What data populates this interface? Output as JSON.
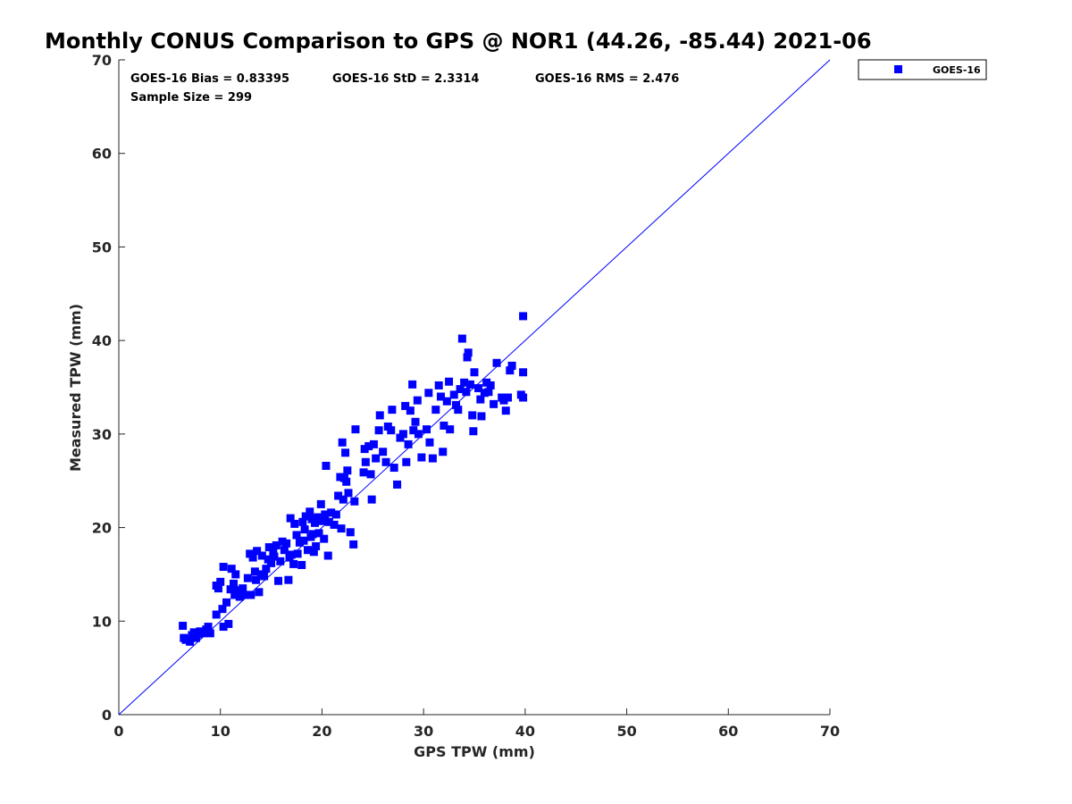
{
  "chart_data": {
    "type": "scatter",
    "title": "Monthly CONUS Comparison to GPS @ NOR1 (44.26, -85.44) 2021-06",
    "xlabel": "GPS TPW (mm)",
    "ylabel": "Measured TPW (mm)",
    "xlim": [
      0,
      70
    ],
    "ylim": [
      0,
      70
    ],
    "xticks": [
      "0",
      "10",
      "20",
      "30",
      "40",
      "50",
      "60",
      "70"
    ],
    "yticks": [
      "0",
      "10",
      "20",
      "30",
      "40",
      "50",
      "60",
      "70"
    ],
    "grid": false,
    "legend_position": "top-right (outside)",
    "reference_line": {
      "type": "one-to-one",
      "from": [
        0,
        0
      ],
      "to": [
        70,
        70
      ],
      "color": "#0000ff"
    },
    "stats": {
      "bias": "GOES-16 Bias = 0.83395",
      "std": "GOES-16 StD = 2.3314",
      "rms": "GOES-16 RMS = 2.476",
      "sample_size": "Sample Size = 299"
    },
    "series": [
      {
        "name": "GOES-16",
        "color": "#0000ff",
        "marker": "square",
        "points": [
          [
            6.3,
            9.5
          ],
          [
            6.4,
            8.2
          ],
          [
            6.6,
            8.0
          ],
          [
            7.0,
            7.8
          ],
          [
            7.2,
            8.5
          ],
          [
            7.4,
            8.8
          ],
          [
            7.6,
            8.2
          ],
          [
            7.8,
            8.6
          ],
          [
            8.0,
            8.9
          ],
          [
            8.3,
            8.7
          ],
          [
            8.6,
            9.1
          ],
          [
            8.8,
            9.4
          ],
          [
            9.0,
            8.7
          ],
          [
            9.6,
            10.7
          ],
          [
            9.6,
            13.8
          ],
          [
            9.8,
            13.5
          ],
          [
            10.0,
            14.2
          ],
          [
            10.2,
            11.3
          ],
          [
            10.3,
            9.4
          ],
          [
            10.3,
            15.8
          ],
          [
            10.6,
            12.0
          ],
          [
            10.8,
            9.7
          ],
          [
            11.0,
            13.4
          ],
          [
            11.1,
            15.6
          ],
          [
            11.3,
            14.0
          ],
          [
            11.4,
            12.8
          ],
          [
            11.5,
            15.0
          ],
          [
            11.7,
            13.3
          ],
          [
            11.9,
            12.6
          ],
          [
            12.2,
            13.5
          ],
          [
            12.4,
            12.8
          ],
          [
            12.7,
            14.6
          ],
          [
            12.9,
            17.2
          ],
          [
            13.0,
            12.8
          ],
          [
            13.2,
            16.8
          ],
          [
            13.4,
            15.3
          ],
          [
            13.5,
            14.4
          ],
          [
            13.6,
            17.5
          ],
          [
            13.8,
            13.1
          ],
          [
            14.0,
            15.0
          ],
          [
            14.1,
            17.0
          ],
          [
            14.3,
            14.8
          ],
          [
            14.5,
            15.6
          ],
          [
            14.7,
            16.6
          ],
          [
            14.8,
            17.9
          ],
          [
            15.0,
            16.2
          ],
          [
            15.2,
            17.3
          ],
          [
            15.3,
            16.9
          ],
          [
            15.5,
            18.1
          ],
          [
            15.7,
            14.3
          ],
          [
            15.9,
            16.4
          ],
          [
            16.1,
            18.5
          ],
          [
            16.3,
            17.6
          ],
          [
            16.5,
            18.3
          ],
          [
            16.7,
            14.4
          ],
          [
            16.8,
            16.8
          ],
          [
            16.9,
            21.0
          ],
          [
            17.0,
            17.1
          ],
          [
            17.2,
            16.1
          ],
          [
            17.3,
            20.4
          ],
          [
            17.5,
            19.2
          ],
          [
            17.6,
            17.2
          ],
          [
            17.8,
            18.4
          ],
          [
            18.0,
            16.0
          ],
          [
            18.1,
            20.6
          ],
          [
            18.2,
            18.6
          ],
          [
            18.3,
            19.8
          ],
          [
            18.4,
            21.2
          ],
          [
            18.6,
            17.6
          ],
          [
            18.8,
            21.7
          ],
          [
            18.9,
            19.0
          ],
          [
            19.0,
            20.9
          ],
          [
            19.1,
            19.3
          ],
          [
            19.2,
            17.4
          ],
          [
            19.3,
            20.5
          ],
          [
            19.4,
            18.0
          ],
          [
            19.6,
            21.1
          ],
          [
            19.7,
            19.4
          ],
          [
            19.9,
            22.5
          ],
          [
            20.0,
            20.7
          ],
          [
            20.2,
            18.8
          ],
          [
            20.3,
            21.4
          ],
          [
            20.4,
            26.6
          ],
          [
            20.6,
            17.0
          ],
          [
            20.7,
            20.6
          ],
          [
            20.9,
            21.6
          ],
          [
            21.2,
            20.3
          ],
          [
            21.4,
            21.4
          ],
          [
            21.6,
            23.4
          ],
          [
            21.8,
            25.4
          ],
          [
            21.9,
            19.9
          ],
          [
            22.0,
            29.1
          ],
          [
            22.1,
            23.0
          ],
          [
            22.2,
            25.3
          ],
          [
            22.3,
            28.0
          ],
          [
            22.4,
            24.9
          ],
          [
            22.5,
            26.1
          ],
          [
            22.6,
            23.7
          ],
          [
            22.8,
            19.5
          ],
          [
            23.1,
            18.2
          ],
          [
            23.2,
            22.8
          ],
          [
            23.3,
            30.5
          ],
          [
            24.1,
            25.9
          ],
          [
            24.2,
            28.4
          ],
          [
            24.3,
            27.0
          ],
          [
            24.6,
            28.7
          ],
          [
            24.8,
            25.7
          ],
          [
            24.9,
            23.0
          ],
          [
            25.1,
            28.9
          ],
          [
            25.3,
            27.4
          ],
          [
            25.6,
            30.4
          ],
          [
            25.7,
            32.0
          ],
          [
            26.0,
            28.1
          ],
          [
            26.3,
            27.0
          ],
          [
            26.5,
            30.8
          ],
          [
            26.8,
            30.4
          ],
          [
            26.9,
            32.6
          ],
          [
            27.1,
            26.4
          ],
          [
            27.4,
            24.6
          ],
          [
            27.7,
            29.6
          ],
          [
            28.0,
            30.0
          ],
          [
            28.2,
            33.0
          ],
          [
            28.3,
            27.0
          ],
          [
            28.5,
            28.9
          ],
          [
            28.7,
            32.5
          ],
          [
            28.9,
            35.3
          ],
          [
            29.0,
            30.4
          ],
          [
            29.2,
            31.3
          ],
          [
            29.4,
            33.6
          ],
          [
            29.5,
            30.0
          ],
          [
            29.8,
            27.5
          ],
          [
            30.3,
            30.5
          ],
          [
            30.5,
            34.4
          ],
          [
            30.6,
            29.1
          ],
          [
            30.9,
            27.4
          ],
          [
            31.2,
            32.6
          ],
          [
            31.5,
            35.2
          ],
          [
            31.7,
            34.0
          ],
          [
            31.9,
            28.1
          ],
          [
            32.0,
            30.9
          ],
          [
            32.3,
            33.5
          ],
          [
            32.5,
            35.6
          ],
          [
            32.6,
            30.5
          ],
          [
            33.0,
            34.2
          ],
          [
            33.2,
            33.1
          ],
          [
            33.4,
            32.6
          ],
          [
            33.6,
            34.8
          ],
          [
            33.8,
            40.2
          ],
          [
            34.0,
            35.5
          ],
          [
            34.2,
            34.5
          ],
          [
            34.3,
            38.2
          ],
          [
            34.4,
            38.7
          ],
          [
            34.6,
            35.3
          ],
          [
            34.8,
            32.0
          ],
          [
            34.9,
            30.3
          ],
          [
            35.0,
            36.6
          ],
          [
            35.4,
            34.9
          ],
          [
            35.6,
            33.7
          ],
          [
            35.7,
            31.9
          ],
          [
            36.0,
            34.4
          ],
          [
            36.2,
            35.5
          ],
          [
            36.4,
            34.5
          ],
          [
            36.6,
            35.2
          ],
          [
            36.9,
            33.2
          ],
          [
            37.2,
            37.6
          ],
          [
            37.7,
            33.9
          ],
          [
            37.9,
            33.6
          ],
          [
            38.1,
            32.5
          ],
          [
            38.3,
            33.9
          ],
          [
            38.5,
            36.8
          ],
          [
            38.7,
            37.3
          ],
          [
            39.6,
            34.2
          ],
          [
            39.8,
            33.9
          ],
          [
            39.8,
            36.6
          ],
          [
            39.8,
            42.6
          ]
        ]
      }
    ]
  }
}
